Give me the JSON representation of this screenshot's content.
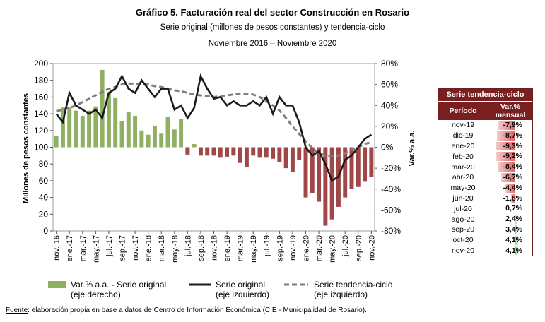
{
  "header": {
    "title": "Gráfico 5. Facturación real del sector Construcción en Rosario",
    "subtitle": "Serie original (millones de pesos constantes) y tendencia-ciclo",
    "period": "Noviembre 2016 – Noviembre 2020"
  },
  "colors": {
    "bars_positive": "#8faf62",
    "bars_negative": "#a04848",
    "original_line": "#1a1a1a",
    "trend_line": "#7f7f7f",
    "table_header": "#7a1f1f",
    "table_bar_negative": "#e06666",
    "table_bar_positive": "#7fd38a"
  },
  "chart_data": {
    "type": "bar",
    "ylabel": "Millones de pesos constantes",
    "y2label": "Var.% a.a.",
    "ylim": [
      0,
      200
    ],
    "yticks": [
      "0",
      "20",
      "40",
      "60",
      "80",
      "100",
      "120",
      "140",
      "160",
      "180",
      "200"
    ],
    "y2lim": [
      -80,
      80
    ],
    "y2ticks": [
      "-80%",
      "-60%",
      "-40%",
      "-20%",
      "0%",
      "20%",
      "40%",
      "60%",
      "80%"
    ],
    "categories": [
      "nov-16",
      "dic-16",
      "ene-17",
      "feb-17",
      "mar-17",
      "abr-17",
      "may-17",
      "jun-17",
      "jul-17",
      "ago-17",
      "sep-17",
      "oct-17",
      "nov-17",
      "dic-17",
      "ene-18",
      "feb-18",
      "mar-18",
      "abr-18",
      "may-18",
      "jun-18",
      "jul-18",
      "ago-18",
      "sep-18",
      "oct-18",
      "nov-18",
      "dic-18",
      "ene-19",
      "feb-19",
      "mar-19",
      "abr-19",
      "may-19",
      "jun-19",
      "jul-19",
      "ago-19",
      "sep-19",
      "oct-19",
      "nov-19",
      "dic-19",
      "ene-20",
      "feb-20",
      "mar-20",
      "abr-20",
      "may-20",
      "jun-20",
      "jul-20",
      "ago-20",
      "sep-20",
      "oct-20",
      "nov-20"
    ],
    "tick_labels": [
      "nov.-16",
      "ene.-17",
      "mar.-17",
      "may.-17",
      "jul.-17",
      "sep.-17",
      "nov.-17",
      "ene.-18",
      "mar.-18",
      "may.-18",
      "jul.-18",
      "sep.-18",
      "nov.-18",
      "ene.-19",
      "mar.-19",
      "may.-19",
      "jul.-19",
      "sep.-19",
      "nov.-19",
      "ene.-20",
      "mar.-20",
      "may.-20",
      "jul.-20",
      "sep.-20",
      "nov.-20"
    ],
    "series": [
      {
        "name": "Var.% a.a. - Serie original (eje derecho)",
        "axis": "right",
        "kind": "bar",
        "values": [
          11,
          38,
          38,
          35,
          30,
          35,
          39,
          74,
          52,
          47,
          25,
          34,
          30,
          16,
          12,
          20,
          13,
          29,
          17,
          27,
          -7,
          3,
          -8,
          -8,
          -8,
          -10,
          -9,
          -8,
          -15,
          -19,
          -8,
          -10,
          -10,
          -11,
          -14,
          -20,
          -24,
          -12,
          -48,
          -44,
          -52,
          -75,
          -69,
          -57,
          -48,
          -40,
          -38,
          -33,
          -28
        ],
        "labels": [
          "(eje derecho)"
        ]
      },
      {
        "name": "Serie original (eje izquierdo)",
        "axis": "left",
        "kind": "line",
        "values": [
          140,
          130,
          165,
          150,
          145,
          140,
          145,
          135,
          165,
          170,
          185,
          170,
          165,
          180,
          170,
          160,
          170,
          170,
          145,
          150,
          135,
          147,
          185,
          170,
          158,
          160,
          150,
          155,
          150,
          150,
          155,
          150,
          160,
          140,
          160,
          150,
          150,
          130,
          100,
          90,
          95,
          80,
          60,
          65,
          85,
          90,
          100,
          110,
          115
        ]
      },
      {
        "name": "Serie tendencia-ciclo (eje izquierdo)",
        "axis": "left",
        "kind": "dashed",
        "values": [
          143,
          145,
          147,
          150,
          154,
          158,
          162,
          166,
          170,
          172,
          175,
          176,
          176,
          175,
          175,
          173,
          172,
          170,
          168,
          167,
          165,
          163,
          162,
          161,
          160,
          161,
          162,
          163,
          164,
          164,
          163,
          160,
          155,
          150,
          144,
          135,
          125,
          116,
          107,
          99,
          93,
          90,
          89,
          90,
          93,
          97,
          100,
          104,
          106
        ]
      }
    ],
    "legend": [
      {
        "label": "Var.% a.a. - Serie original",
        "label2": "(eje derecho)"
      },
      {
        "label": "Serie original",
        "label2": "(eje izquierdo)"
      },
      {
        "label": "Serie tendencia-ciclo",
        "label2": "(eje izquierdo)"
      }
    ],
    "legend_position": "bottom",
    "grid": false
  },
  "table": {
    "title": "Serie tendencia-ciclo",
    "col1": "Período",
    "col2": "Var.% mensual",
    "rows": [
      {
        "period": "nov-19",
        "value": "-7,9%",
        "num": -7.9
      },
      {
        "period": "dic-19",
        "value": "-8,7%",
        "num": -8.7
      },
      {
        "period": "ene-20",
        "value": "-9,3%",
        "num": -9.3
      },
      {
        "period": "feb-20",
        "value": "-9,2%",
        "num": -9.2
      },
      {
        "period": "mar-20",
        "value": "-8,4%",
        "num": -8.4
      },
      {
        "period": "abr-20",
        "value": "-6,7%",
        "num": -6.7
      },
      {
        "period": "may-20",
        "value": "-4,4%",
        "num": -4.4
      },
      {
        "period": "jun-20",
        "value": "-1,8%",
        "num": -1.8
      },
      {
        "period": "jul-20",
        "value": "0,7%",
        "num": 0.7
      },
      {
        "period": "ago-20",
        "value": "2,4%",
        "num": 2.4
      },
      {
        "period": "sep-20",
        "value": "3,4%",
        "num": 3.4
      },
      {
        "period": "oct-20",
        "value": "4,1%",
        "num": 4.1
      },
      {
        "period": "nov-20",
        "value": "4,1%",
        "num": 4.1
      }
    ]
  },
  "footer": {
    "source_label": "Fuente",
    "source_text": ": elaboración propia en base a datos de Centro de Información Económica (CIE - Municipalidad de Rosario)."
  }
}
